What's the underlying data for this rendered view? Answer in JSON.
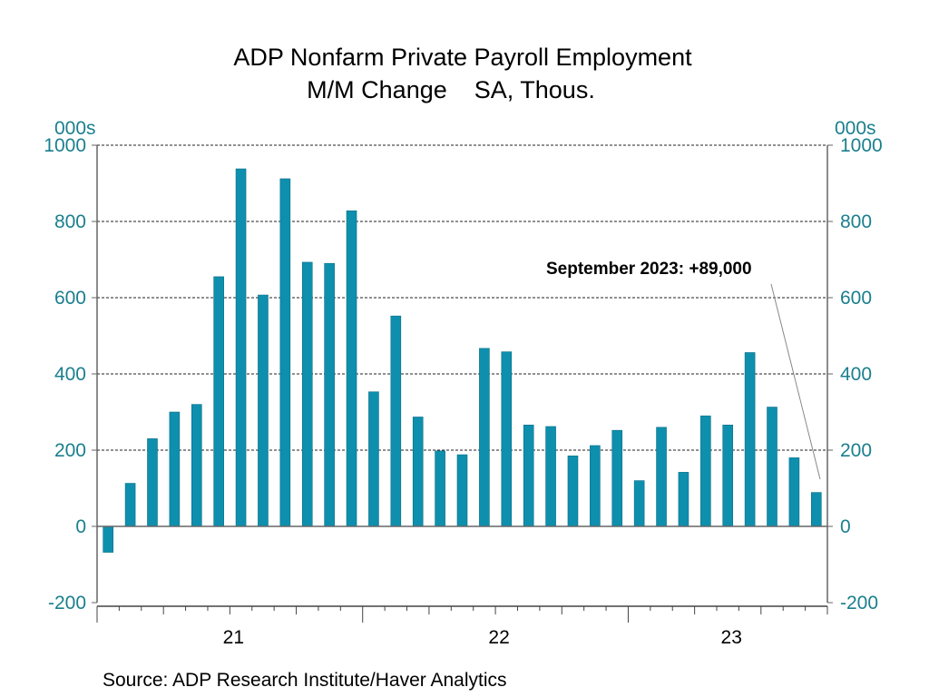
{
  "chart_data": {
    "type": "bar",
    "title": "ADP Nonfarm Private Payroll Employment",
    "subtitle": "M/M Change    SA, Thous.",
    "ylabel_left": "000s",
    "ylabel_right": "000s",
    "ylim": [
      -200,
      1000
    ],
    "yticks": [
      -200,
      0,
      200,
      400,
      600,
      800,
      1000
    ],
    "ytick_labels": [
      "-200",
      "0",
      "200",
      "400",
      "600",
      "800",
      "1000"
    ],
    "xtick_labels": [
      "21",
      "22",
      "23"
    ],
    "grid": true,
    "color": "#0E8FAE",
    "categories": [
      "Jan 2021",
      "Feb 2021",
      "Mar 2021",
      "Apr 2021",
      "May 2021",
      "Jun 2021",
      "Jul 2021",
      "Aug 2021",
      "Sep 2021",
      "Oct 2021",
      "Nov 2021",
      "Dec 2021",
      "Jan 2022",
      "Feb 2022",
      "Mar 2022",
      "Apr 2022",
      "May 2022",
      "Jun 2022",
      "Jul 2022",
      "Aug 2022",
      "Sep 2022",
      "Oct 2022",
      "Nov 2022",
      "Dec 2022",
      "Jan 2023",
      "Feb 2023",
      "Mar 2023",
      "Apr 2023",
      "May 2023",
      "Jun 2023",
      "Jul 2023",
      "Aug 2023",
      "Sep 2023"
    ],
    "values": [
      -68,
      113,
      230,
      300,
      320,
      655,
      938,
      607,
      912,
      693,
      690,
      828,
      353,
      552,
      287,
      198,
      188,
      467,
      458,
      266,
      262,
      185,
      212,
      252,
      120,
      260,
      142,
      290,
      266,
      456,
      313,
      180,
      89
    ],
    "annotation": "September 2023: +89,000",
    "source": "Source:  ADP Research Institute/Haver Analytics"
  }
}
